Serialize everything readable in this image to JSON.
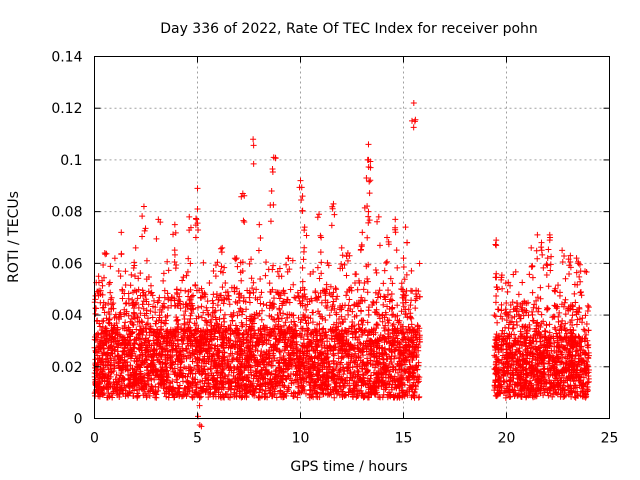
{
  "chart_data": {
    "type": "scatter",
    "title": "Day 336 of 2022, Rate Of TEC Index for receiver pohn",
    "xlabel": "GPS time / hours",
    "ylabel": "ROTI / TECUs",
    "xlim": [
      0,
      25
    ],
    "ylim": [
      0,
      0.14
    ],
    "xticks": [
      0,
      5,
      10,
      15,
      20,
      25
    ],
    "xtick_labels": [
      "0",
      "5",
      "10",
      "15",
      "20",
      "25"
    ],
    "yticks": [
      0,
      0.02,
      0.04,
      0.06,
      0.08,
      0.1,
      0.12,
      0.14
    ],
    "ytick_labels": [
      "0",
      "0.02",
      "0.04",
      "0.06",
      "0.08",
      "0.1",
      "0.12",
      "0.14"
    ],
    "grid": true,
    "marker": "+",
    "color": "#ff0000",
    "segments": [
      {
        "x_start": 0.0,
        "x_end": 15.8,
        "core_low": 0.008,
        "core_high": 0.035,
        "typical_max": 0.05
      },
      {
        "x_start": 19.4,
        "x_end": 24.0,
        "core_low": 0.008,
        "core_high": 0.032,
        "typical_max": 0.045
      }
    ],
    "peaks": [
      {
        "x": 0.5,
        "y": 0.064
      },
      {
        "x": 1.3,
        "y": 0.072
      },
      {
        "x": 2.4,
        "y": 0.082
      },
      {
        "x": 3.1,
        "y": 0.077
      },
      {
        "x": 3.9,
        "y": 0.075
      },
      {
        "x": 4.6,
        "y": 0.078
      },
      {
        "x": 5.0,
        "y": 0.089
      },
      {
        "x": 5.0,
        "y": 0.081
      },
      {
        "x": 6.2,
        "y": 0.066
      },
      {
        "x": 7.2,
        "y": 0.087
      },
      {
        "x": 7.7,
        "y": 0.108
      },
      {
        "x": 8.0,
        "y": 0.075
      },
      {
        "x": 8.6,
        "y": 0.088
      },
      {
        "x": 8.7,
        "y": 0.101
      },
      {
        "x": 9.4,
        "y": 0.062
      },
      {
        "x": 10.0,
        "y": 0.092
      },
      {
        "x": 10.1,
        "y": 0.086
      },
      {
        "x": 10.2,
        "y": 0.074
      },
      {
        "x": 10.9,
        "y": 0.079
      },
      {
        "x": 11.0,
        "y": 0.07
      },
      {
        "x": 11.6,
        "y": 0.083
      },
      {
        "x": 12.3,
        "y": 0.064
      },
      {
        "x": 13.0,
        "y": 0.072
      },
      {
        "x": 13.3,
        "y": 0.106
      },
      {
        "x": 13.3,
        "y": 0.1
      },
      {
        "x": 13.2,
        "y": 0.093
      },
      {
        "x": 13.4,
        "y": 0.097
      },
      {
        "x": 13.3,
        "y": 0.08
      },
      {
        "x": 13.8,
        "y": 0.078
      },
      {
        "x": 14.6,
        "y": 0.077
      },
      {
        "x": 15.1,
        "y": 0.074
      },
      {
        "x": 15.5,
        "y": 0.122
      },
      {
        "x": 19.5,
        "y": 0.069
      },
      {
        "x": 19.5,
        "y": 0.056
      },
      {
        "x": 20.6,
        "y": 0.048
      },
      {
        "x": 21.2,
        "y": 0.066
      },
      {
        "x": 21.5,
        "y": 0.071
      },
      {
        "x": 21.7,
        "y": 0.068
      },
      {
        "x": 22.0,
        "y": 0.062
      },
      {
        "x": 22.1,
        "y": 0.071
      },
      {
        "x": 22.1,
        "y": 0.069
      },
      {
        "x": 22.7,
        "y": 0.065
      },
      {
        "x": 23.1,
        "y": 0.063
      },
      {
        "x": 23.4,
        "y": 0.062
      },
      {
        "x": 23.5,
        "y": 0.06
      },
      {
        "x": 23.6,
        "y": 0.057
      },
      {
        "x": 0.2,
        "y": 0.055
      },
      {
        "x": 2.0,
        "y": 0.066
      },
      {
        "x": 6.9,
        "y": 0.062
      },
      {
        "x": 9.0,
        "y": 0.058
      },
      {
        "x": 12.0,
        "y": 0.066
      },
      {
        "x": 14.2,
        "y": 0.07
      },
      {
        "x": 15.0,
        "y": 0.062
      },
      {
        "x": 20.3,
        "y": 0.045
      },
      {
        "x": 5.1,
        "y": 0.005
      }
    ]
  }
}
